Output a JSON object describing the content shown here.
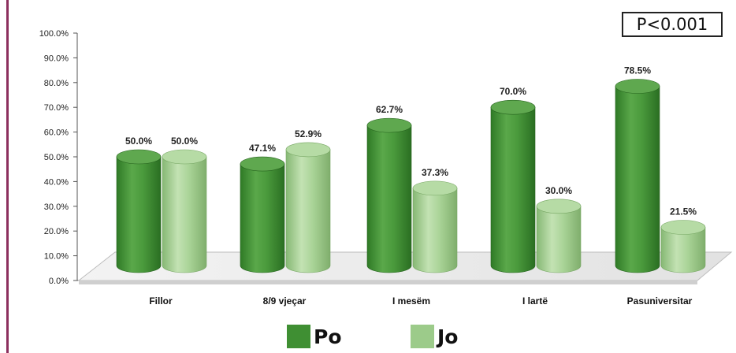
{
  "chart_data": {
    "type": "bar",
    "categories": [
      "Fillor",
      "8/9 vjeçar",
      "I mesëm",
      "I lartë",
      "Pasuniversitar"
    ],
    "series": [
      {
        "name": "Po",
        "values": [
          50.0,
          47.1,
          62.7,
          70.0,
          78.5
        ],
        "color": "#3f8f33"
      },
      {
        "name": "Jo",
        "values": [
          50.0,
          52.9,
          37.3,
          30.0,
          21.5
        ],
        "color": "#9ccb8a"
      }
    ],
    "value_labels": {
      "Po": [
        "50.0%",
        "47.1%",
        "62.7%",
        "70.0%",
        "78.5%"
      ],
      "Jo": [
        "50.0%",
        "52.9%",
        "37.3%",
        "30.0%",
        "21.5%"
      ]
    },
    "y_ticks": [
      "0.0%",
      "10.0%",
      "20.0%",
      "30.0%",
      "40.0%",
      "50.0%",
      "60.0%",
      "70.0%",
      "80.0%",
      "90.0%",
      "100.0%"
    ],
    "ylim": [
      0,
      100
    ],
    "annotation": "P<0.001",
    "legend_position": "bottom",
    "style": "3d-cylinder"
  }
}
